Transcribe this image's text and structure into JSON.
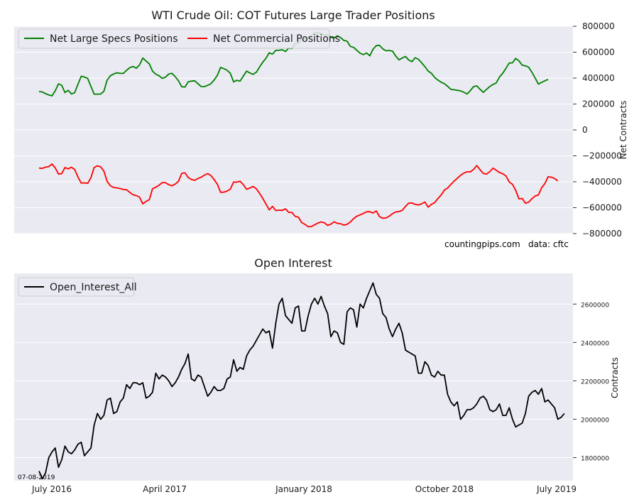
{
  "chart_data": [
    {
      "type": "line",
      "title": "WTI Crude Oil: COT Futures Large Trader Positions",
      "ylabel": "Net Contracts",
      "ylim": [
        -800000,
        800000
      ],
      "yticks": [
        800000,
        600000,
        400000,
        200000,
        0,
        -200000,
        -400000,
        -600000,
        -800000
      ],
      "ytick_labels": [
        "800000",
        "600000",
        "400000",
        "200000",
        "0",
        "−200000",
        "−400000",
        "−600000",
        "−800000"
      ],
      "x_index_range": [
        0,
        157
      ],
      "grid": true,
      "legend_placement": "top-left",
      "background": "#eaeaf2",
      "series": [
        {
          "name": "Net Large Specs Positions",
          "color": "#008000",
          "values": [
            296000,
            293000,
            280000,
            270000,
            263000,
            302000,
            356000,
            344000,
            288000,
            306000,
            277000,
            288000,
            352000,
            414000,
            408000,
            398000,
            336000,
            276000,
            276000,
            277000,
            298000,
            384000,
            418000,
            432000,
            441000,
            436000,
            436000,
            460000,
            481000,
            490000,
            476000,
            503000,
            555000,
            532000,
            510000,
            454000,
            430000,
            418000,
            398000,
            407000,
            432000,
            437000,
            411000,
            379000,
            333000,
            331000,
            371000,
            377000,
            379000,
            357000,
            335000,
            334000,
            344000,
            356000,
            385000,
            422000,
            482000,
            473000,
            460000,
            437000,
            371000,
            383000,
            377000,
            415000,
            454000,
            440000,
            429000,
            445000,
            485000,
            523000,
            554000,
            595000,
            585000,
            614000,
            614000,
            619000,
            605000,
            631000,
            628000,
            668000,
            670000,
            698000,
            703000,
            713000,
            729000,
            751000,
            749000,
            743000,
            731000,
            735000,
            715000,
            710000,
            726000,
            713000,
            691000,
            685000,
            645000,
            637000,
            614000,
            593000,
            581000,
            594000,
            572000,
            623000,
            651000,
            653000,
            626000,
            611000,
            613000,
            608000,
            570000,
            541000,
            555000,
            567000,
            540000,
            527000,
            557000,
            545000,
            518000,
            488000,
            455000,
            437000,
            405000,
            385000,
            368000,
            357000,
            337000,
            313000,
            310000,
            305000,
            302000,
            291000,
            277000,
            303000,
            334000,
            340000,
            314000,
            290000,
            313000,
            335000,
            351000,
            363000,
            408000,
            438000,
            475000,
            516000,
            518000,
            552000,
            533000,
            500000,
            495000,
            484000,
            445000,
            401000,
            354000,
            367000,
            379000,
            390000
          ]
        },
        {
          "name": "Net Commercial Positions",
          "color": "#ff0000",
          "values": [
            -294000,
            -297000,
            -287000,
            -283000,
            -263000,
            -293000,
            -341000,
            -337000,
            -290000,
            -300000,
            -288000,
            -305000,
            -364000,
            -410000,
            -408000,
            -412000,
            -368000,
            -290000,
            -277000,
            -285000,
            -317000,
            -398000,
            -431000,
            -444000,
            -447000,
            -452000,
            -460000,
            -462000,
            -483000,
            -500000,
            -507000,
            -519000,
            -571000,
            -552000,
            -538000,
            -454000,
            -442000,
            -427000,
            -406000,
            -407000,
            -423000,
            -431000,
            -418000,
            -396000,
            -336000,
            -331000,
            -367000,
            -382000,
            -389000,
            -375000,
            -365000,
            -349000,
            -337000,
            -351000,
            -383000,
            -420000,
            -481000,
            -480000,
            -472000,
            -457000,
            -402000,
            -403000,
            -396000,
            -422000,
            -458000,
            -449000,
            -436000,
            -454000,
            -489000,
            -528000,
            -573000,
            -617000,
            -590000,
            -622000,
            -619000,
            -621000,
            -609000,
            -636000,
            -638000,
            -667000,
            -674000,
            -715000,
            -729000,
            -747000,
            -746000,
            -732000,
            -719000,
            -710000,
            -716000,
            -737000,
            -727000,
            -709000,
            -721000,
            -724000,
            -735000,
            -728000,
            -711000,
            -685000,
            -666000,
            -656000,
            -645000,
            -632000,
            -631000,
            -641000,
            -625000,
            -669000,
            -681000,
            -679000,
            -666000,
            -646000,
            -633000,
            -630000,
            -621000,
            -590000,
            -565000,
            -564000,
            -574000,
            -579000,
            -570000,
            -556000,
            -596000,
            -574000,
            -561000,
            -530000,
            -503000,
            -464000,
            -449000,
            -421000,
            -395000,
            -373000,
            -350000,
            -333000,
            -323000,
            -324000,
            -305000,
            -275000,
            -307000,
            -336000,
            -341000,
            -322000,
            -295000,
            -311000,
            -329000,
            -338000,
            -355000,
            -401000,
            -420000,
            -466000,
            -532000,
            -529000,
            -566000,
            -557000,
            -531000,
            -510000,
            -502000,
            -446000,
            -414000,
            -361000,
            -365000,
            -375000,
            -394000
          ]
        }
      ]
    },
    {
      "type": "line",
      "title": "Open Interest",
      "ylabel": "Contracts",
      "ylim": [
        1680000,
        2760000
      ],
      "yticks": [
        1800000,
        2000000,
        2200000,
        2400000,
        2600000
      ],
      "ytick_labels": [
        "1800000",
        "2000000",
        "2200000",
        "2400000",
        "2600000"
      ],
      "x_index_range": [
        0,
        157
      ],
      "grid": true,
      "legend_placement": "top-left",
      "background": "#eaeaf2",
      "series": [
        {
          "name": "Open_Interest_All",
          "color": "#000000",
          "values": [
            1730000,
            1690000,
            1720000,
            1800000,
            1830000,
            1850000,
            1750000,
            1790000,
            1860000,
            1830000,
            1820000,
            1840000,
            1870000,
            1880000,
            1810000,
            1830000,
            1850000,
            1970000,
            2030000,
            2000000,
            2020000,
            2100000,
            2110000,
            2030000,
            2040000,
            2090000,
            2110000,
            2180000,
            2160000,
            2190000,
            2190000,
            2180000,
            2190000,
            2110000,
            2120000,
            2140000,
            2240000,
            2210000,
            2230000,
            2220000,
            2200000,
            2170000,
            2190000,
            2220000,
            2260000,
            2290000,
            2340000,
            2210000,
            2200000,
            2230000,
            2220000,
            2170000,
            2120000,
            2140000,
            2170000,
            2150000,
            2150000,
            2160000,
            2210000,
            2220000,
            2310000,
            2250000,
            2270000,
            2260000,
            2330000,
            2360000,
            2380000,
            2410000,
            2440000,
            2470000,
            2450000,
            2460000,
            2370000,
            2500000,
            2600000,
            2630000,
            2540000,
            2520000,
            2500000,
            2580000,
            2590000,
            2460000,
            2460000,
            2540000,
            2600000,
            2630000,
            2600000,
            2640000,
            2590000,
            2550000,
            2430000,
            2460000,
            2450000,
            2400000,
            2390000,
            2560000,
            2580000,
            2570000,
            2480000,
            2600000,
            2580000,
            2630000,
            2670000,
            2710000,
            2650000,
            2630000,
            2550000,
            2530000,
            2470000,
            2430000,
            2470000,
            2500000,
            2450000,
            2360000,
            2350000,
            2340000,
            2330000,
            2240000,
            2240000,
            2300000,
            2280000,
            2230000,
            2220000,
            2250000,
            2230000,
            2230000,
            2130000,
            2090000,
            2070000,
            2090000,
            2000000,
            2020000,
            2050000,
            2050000,
            2060000,
            2080000,
            2110000,
            2120000,
            2100000,
            2050000,
            2040000,
            2050000,
            2080000,
            2020000,
            2020000,
            2060000,
            2000000,
            1960000,
            1970000,
            1980000,
            2030000,
            2120000,
            2140000,
            2150000,
            2130000,
            2160000,
            2090000,
            2100000,
            2080000,
            2060000,
            2000000,
            2010000,
            2030000
          ]
        }
      ],
      "xtick_labels": [
        "July 2016",
        "April 2017",
        "January 2018",
        "October 2018",
        "July 2019"
      ]
    }
  ],
  "annotations": {
    "site": "countingpips.com",
    "source": "data: cftc",
    "date_stamp": "07-08-2019"
  }
}
